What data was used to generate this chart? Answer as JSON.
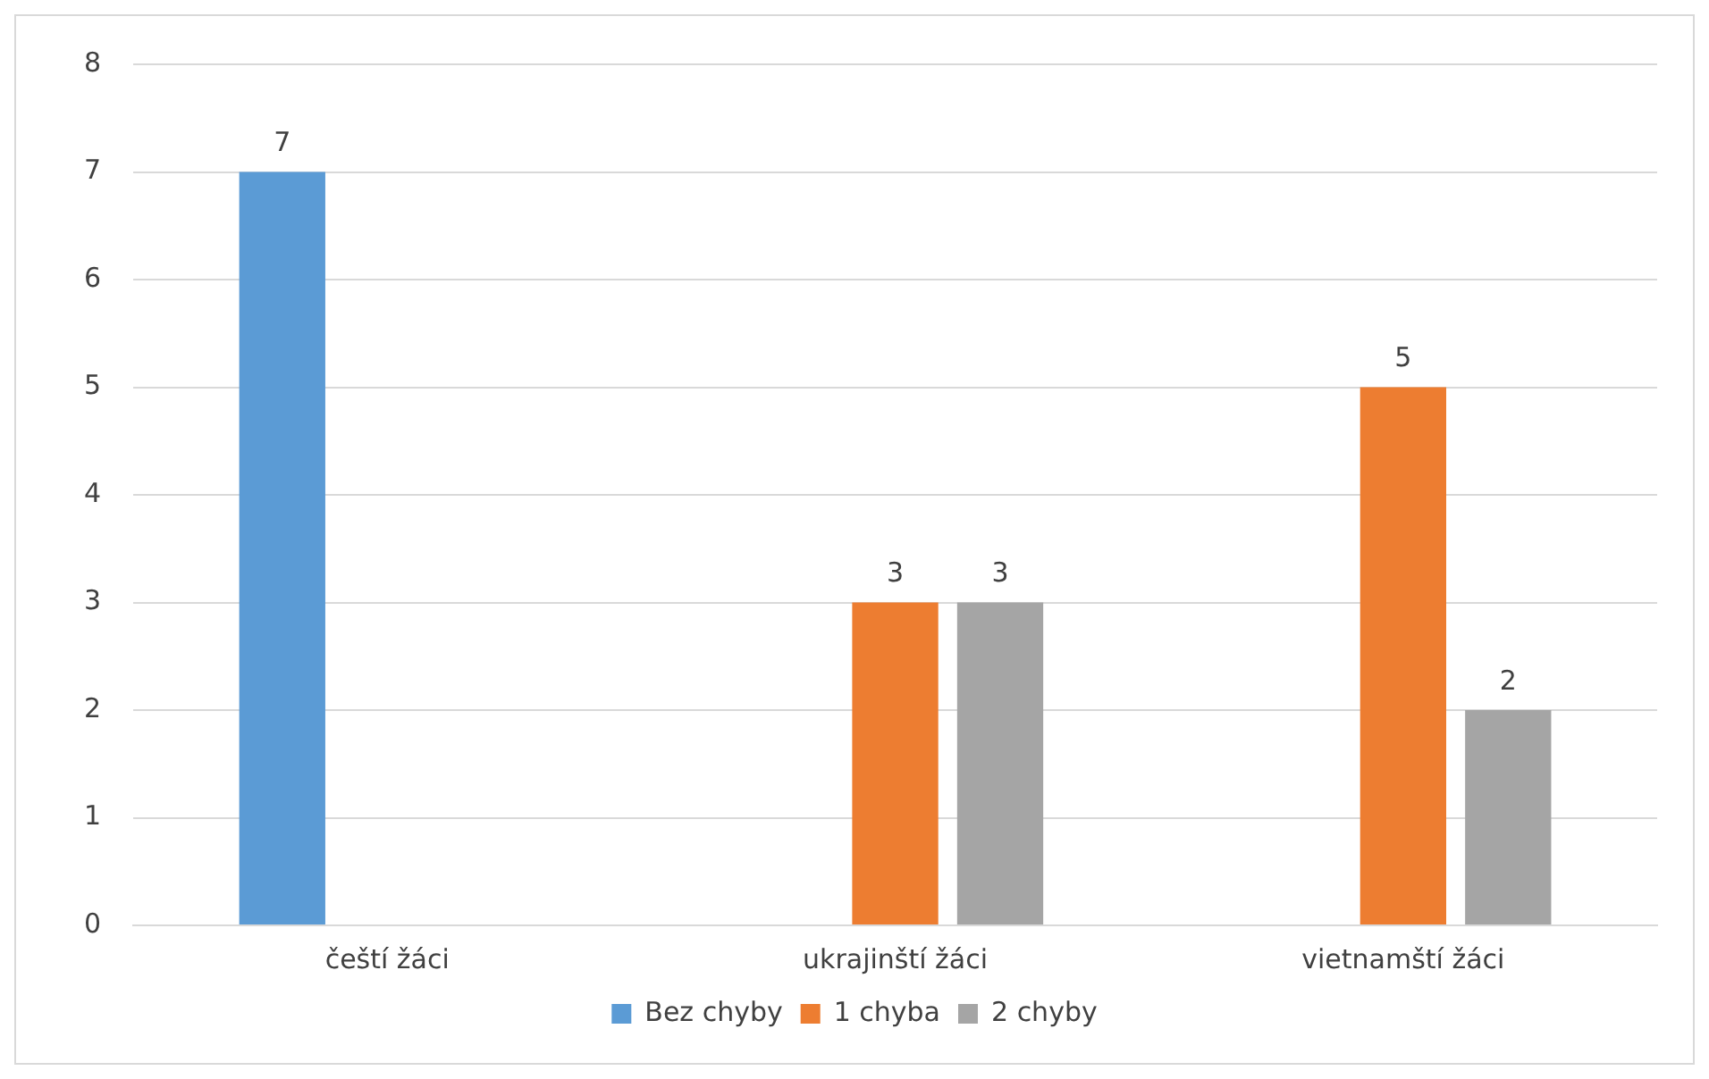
{
  "chart_data": {
    "type": "bar",
    "categories": [
      "čeští žáci",
      "ukrajinští žáci",
      "vietnamští žáci"
    ],
    "series": [
      {
        "name": "Bez chyby",
        "color": "#5b9bd5",
        "values": [
          7,
          0,
          0
        ],
        "value_labels": [
          "7",
          null,
          null
        ]
      },
      {
        "name": "1 chyba",
        "color": "#ed7d31",
        "values": [
          0,
          3,
          5
        ],
        "value_labels": [
          null,
          "3",
          "5"
        ]
      },
      {
        "name": "2 chyby",
        "color": "#a5a5a5",
        "values": [
          0,
          3,
          2
        ],
        "value_labels": [
          null,
          "3",
          "2"
        ]
      }
    ],
    "ylim": [
      0,
      8
    ],
    "yticks": [
      0,
      1,
      2,
      3,
      4,
      5,
      6,
      7,
      8
    ],
    "grid": "y",
    "legend": "bottom"
  }
}
